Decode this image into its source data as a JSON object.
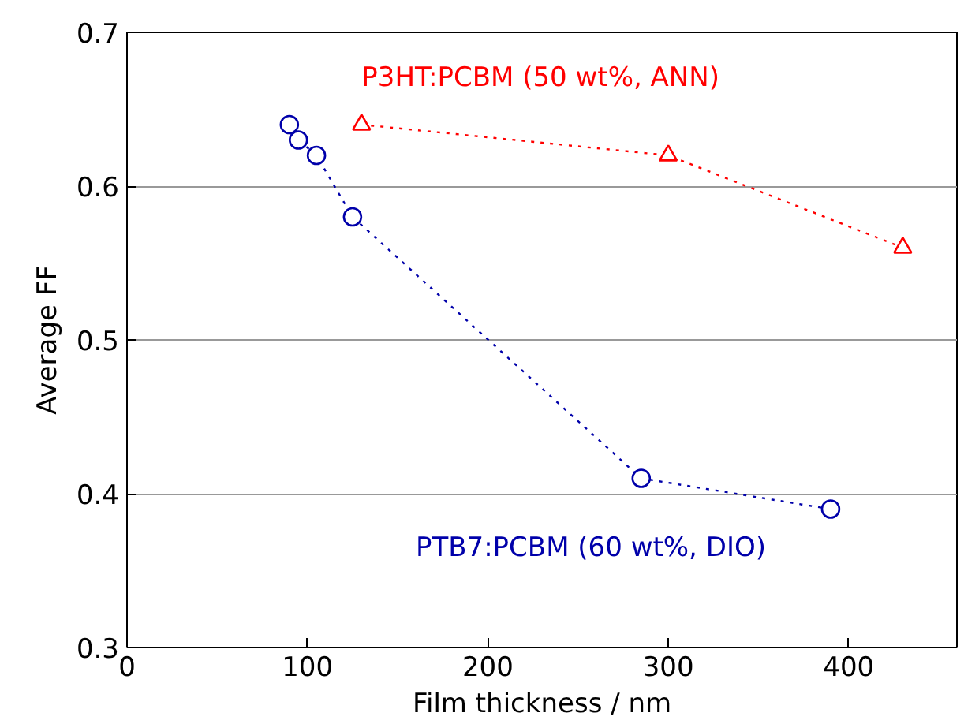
{
  "chart_data": {
    "type": "line",
    "xlabel": "Film thickness / nm",
    "ylabel": "Average FF",
    "xlim": [
      0,
      460
    ],
    "ylim": [
      0.3,
      0.7
    ],
    "xticks": [
      0,
      100,
      200,
      300,
      400
    ],
    "yticks": [
      0.3,
      0.4,
      0.5,
      0.6,
      0.7
    ],
    "grid": "y",
    "line_style": "dotted",
    "series": [
      {
        "name": "P3HT:PCBM (50 wt%, ANN)",
        "color": "#ff0000",
        "marker": "triangle",
        "x": [
          130,
          300,
          430
        ],
        "values": [
          0.64,
          0.62,
          0.56
        ]
      },
      {
        "name": "PTB7:PCBM (60 wt%, DIO)",
        "color": "#0000aa",
        "marker": "circle",
        "x": [
          90,
          95,
          105,
          125,
          285,
          390
        ],
        "values": [
          0.64,
          0.63,
          0.62,
          0.58,
          0.41,
          0.39
        ]
      }
    ]
  }
}
